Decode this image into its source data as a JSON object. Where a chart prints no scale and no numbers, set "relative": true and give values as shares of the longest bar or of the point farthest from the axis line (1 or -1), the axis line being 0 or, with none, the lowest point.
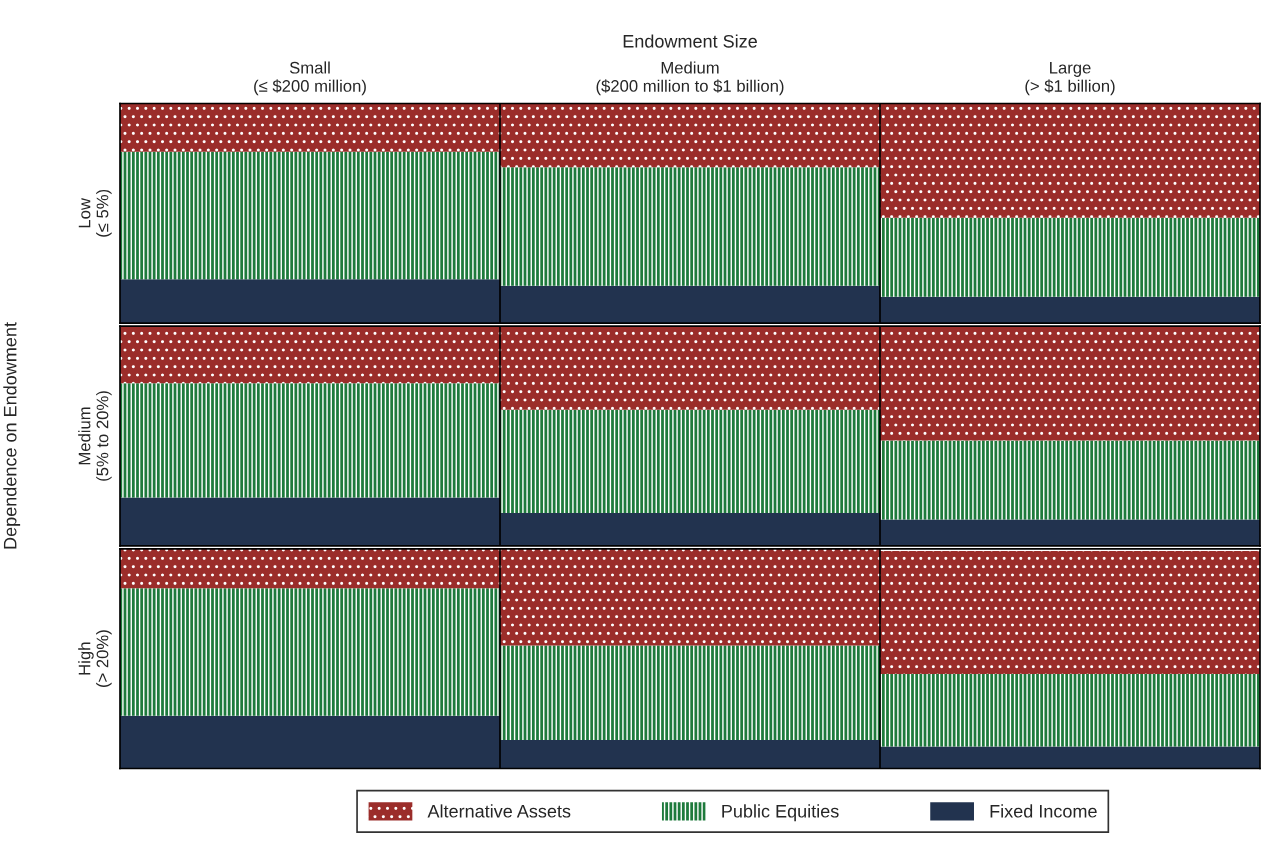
{
  "chart_data": [
    {
      "type": "bar",
      "stacked": true,
      "relative": true,
      "xlabel": "Endowment Size",
      "ylabel": "Low\n(≤ 5%)",
      "tick_labels": "x",
      "categories": [
        "Small\n(≤ $200 million)",
        "Medium\n($200 million to $1 billion)",
        "Large\n(> $1 billion)"
      ],
      "series": [
        {
          "color": "#22334f",
          "values": [
            0.2,
            0.17,
            0.12
          ]
        },
        {
          "color": "#1e7a3c",
          "values": [
            0.58,
            0.54,
            0.36
          ]
        },
        {
          "color": "#9b2d2a",
          "values": [
            0.22,
            0.29,
            0.52
          ]
        }
      ]
    },
    {
      "type": "bar",
      "stacked": true,
      "relative": true,
      "ylabel": "Medium\n(5% to 20%)",
      "tick_labels": false,
      "annotations": [
        "Dependence on Endowment"
      ],
      "categories": [
        null,
        null,
        null
      ],
      "series": [
        {
          "color": "#22334f",
          "values": [
            0.22,
            0.15,
            0.12
          ]
        },
        {
          "color": "#1e7a3c",
          "values": [
            0.52,
            0.47,
            0.36
          ]
        },
        {
          "color": "#9b2d2a",
          "values": [
            0.26,
            0.38,
            0.52
          ]
        }
      ]
    },
    {
      "type": "bar",
      "stacked": true,
      "relative": true,
      "ylabel": "High\n(> 20%)",
      "tick_labels": false,
      "legend": "bottom",
      "categories": [
        null,
        null,
        null
      ],
      "series": [
        {
          "name": "Fixed Income",
          "color": "#22334f",
          "values": [
            0.24,
            0.13,
            0.1
          ]
        },
        {
          "name": "Public Equities",
          "color": "#1e7a3c",
          "values": [
            0.58,
            0.43,
            0.33
          ]
        },
        {
          "name": "Alternative Assets",
          "color": "#9b2d2a",
          "values": [
            0.18,
            0.44,
            0.56
          ]
        }
      ]
    }
  ]
}
